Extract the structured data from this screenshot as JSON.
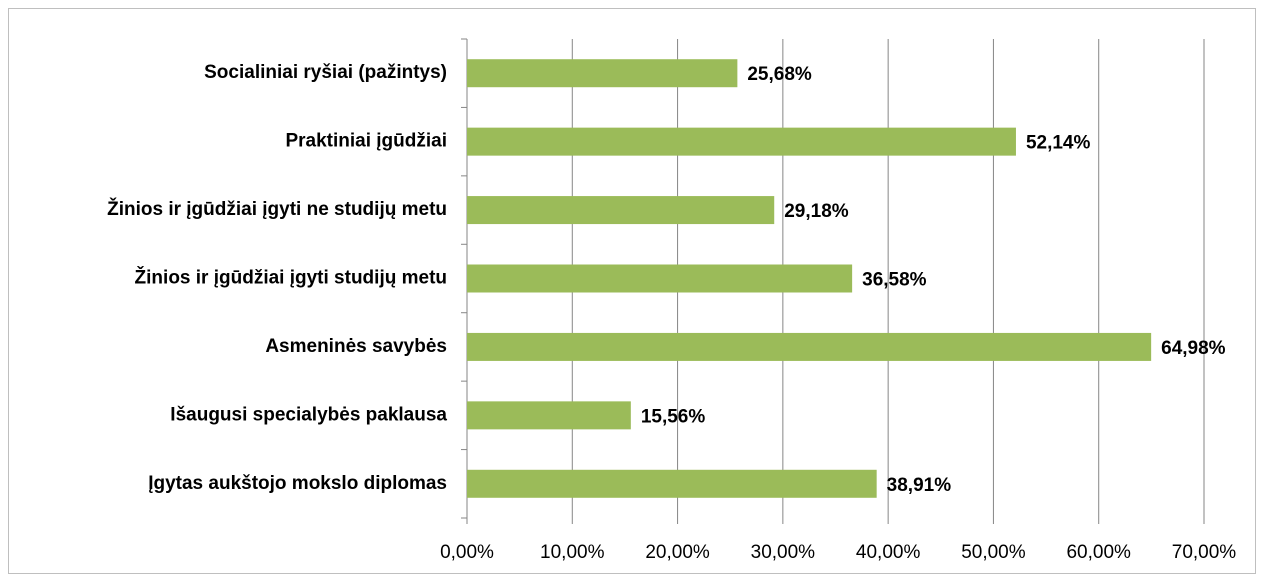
{
  "chart_data": {
    "type": "bar",
    "orientation": "horizontal",
    "categories": [
      "Socialiniai ryšiai (pažintys)",
      "Praktiniai įgūdžiai",
      "Žinios ir įgūdžiai įgyti ne studijų metu",
      "Žinios ir įgūdžiai įgyti studijų metu",
      "Asmeninės savybės",
      "Išaugusi specialybės paklausa",
      "Įgytas aukštojo mokslo diplomas"
    ],
    "values": [
      25.68,
      52.14,
      29.18,
      36.58,
      64.98,
      15.56,
      38.91
    ],
    "value_labels": [
      "25,68%",
      "52,14%",
      "29,18%",
      "36,58%",
      "64,98%",
      "15,56%",
      "38,91%"
    ],
    "color": "#9bbb59",
    "xlim": [
      0,
      70
    ],
    "xticks": [
      {
        "value": 0,
        "label": "0,00%"
      },
      {
        "value": 10,
        "label": "10,00%"
      },
      {
        "value": 20,
        "label": "20,00%"
      },
      {
        "value": 30,
        "label": "30,00%"
      },
      {
        "value": 40,
        "label": "40,00%"
      },
      {
        "value": 50,
        "label": "50,00%"
      },
      {
        "value": 60,
        "label": "60,00%"
      },
      {
        "value": 70,
        "label": "70,00%"
      }
    ],
    "grid": true
  }
}
